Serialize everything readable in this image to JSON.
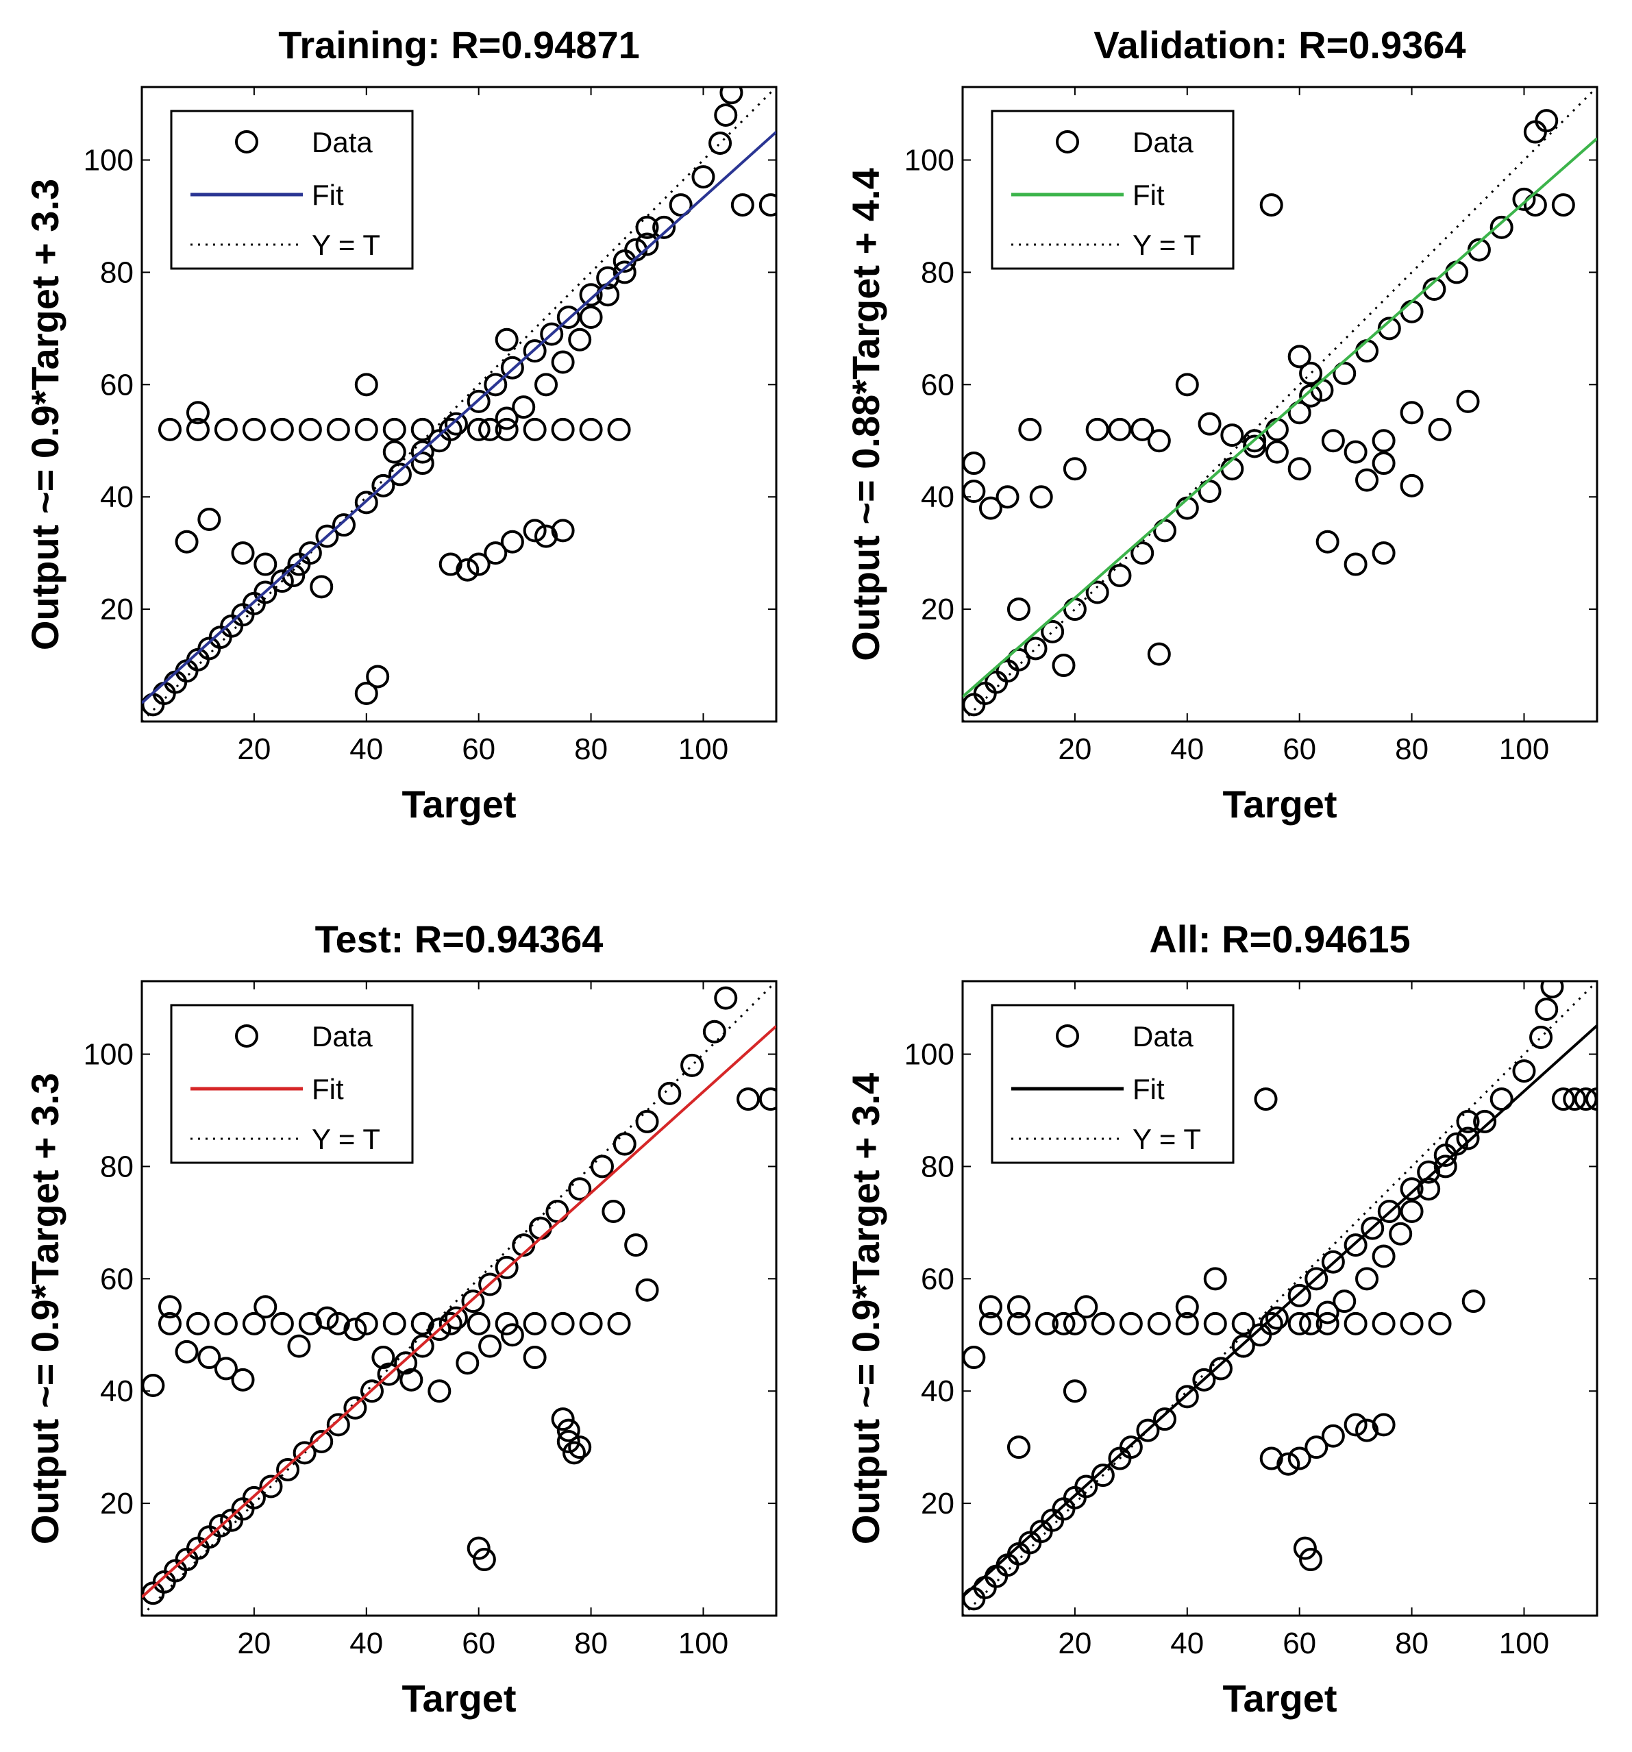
{
  "chart_data": [
    {
      "type": "scatter",
      "title": "Training: R=0.94871",
      "xlabel": "Target",
      "ylabel": "Output ~= 0.9*Target + 3.3",
      "xlim": [
        0,
        113
      ],
      "ylim": [
        0,
        113
      ],
      "xticks": [
        "20",
        "40",
        "60",
        "80",
        "100"
      ],
      "yticks": [
        "20",
        "40",
        "60",
        "80",
        "100"
      ],
      "fit": {
        "slope": 0.9,
        "intercept": 3.3,
        "color": "#2a3593"
      },
      "legend": {
        "position": "top-left",
        "entries": [
          "Data",
          "Fit",
          "Y = T"
        ]
      },
      "series": [
        {
          "name": "Data",
          "x": [
            2,
            4,
            6,
            8,
            10,
            12,
            14,
            16,
            18,
            20,
            22,
            25,
            28,
            30,
            33,
            36,
            40,
            43,
            46,
            50,
            53,
            56,
            60,
            63,
            66,
            70,
            73,
            76,
            80,
            83,
            86,
            90,
            93,
            96,
            100,
            103,
            104,
            105,
            107,
            112,
            5,
            10,
            15,
            20,
            25,
            30,
            35,
            40,
            45,
            50,
            55,
            60,
            65,
            70,
            75,
            80,
            85,
            8,
            12,
            18,
            22,
            27,
            32,
            62,
            65,
            68,
            72,
            75,
            78,
            80,
            83,
            86,
            88,
            90,
            55,
            58,
            60,
            63,
            66,
            70,
            72,
            75,
            40,
            42,
            10,
            40,
            45,
            50,
            65
          ],
          "y": [
            3,
            5,
            7,
            9,
            11,
            13,
            15,
            17,
            19,
            21,
            23,
            25,
            28,
            30,
            33,
            35,
            39,
            42,
            44,
            48,
            50,
            53,
            57,
            60,
            63,
            66,
            69,
            72,
            76,
            79,
            82,
            85,
            88,
            92,
            97,
            103,
            108,
            112,
            92,
            92,
            52,
            52,
            52,
            52,
            52,
            52,
            52,
            52,
            52,
            52,
            52,
            52,
            52,
            52,
            52,
            52,
            52,
            32,
            36,
            30,
            28,
            26,
            24,
            52,
            54,
            56,
            60,
            64,
            68,
            72,
            76,
            80,
            84,
            88,
            28,
            27,
            28,
            30,
            32,
            34,
            33,
            34,
            5,
            8,
            55,
            60,
            48,
            46,
            68
          ]
        }
      ]
    },
    {
      "type": "scatter",
      "title": "Validation: R=0.9364",
      "xlabel": "Target",
      "ylabel": "Output ~= 0.88*Target + 4.4",
      "xlim": [
        0,
        113
      ],
      "ylim": [
        0,
        113
      ],
      "xticks": [
        "20",
        "40",
        "60",
        "80",
        "100"
      ],
      "yticks": [
        "20",
        "40",
        "60",
        "80",
        "100"
      ],
      "fit": {
        "slope": 0.88,
        "intercept": 4.4,
        "color": "#3cb44b"
      },
      "legend": {
        "position": "top-left",
        "entries": [
          "Data",
          "Fit",
          "Y = T"
        ]
      },
      "series": [
        {
          "name": "Data",
          "x": [
            2,
            4,
            6,
            8,
            10,
            13,
            16,
            20,
            24,
            28,
            32,
            36,
            40,
            44,
            48,
            52,
            56,
            60,
            64,
            68,
            72,
            76,
            80,
            84,
            88,
            92,
            96,
            100,
            102,
            104,
            2,
            2,
            5,
            8,
            12,
            14,
            20,
            24,
            28,
            32,
            35,
            40,
            44,
            48,
            52,
            56,
            60,
            55,
            75,
            80,
            85,
            90,
            107,
            102,
            65,
            70,
            75,
            80,
            75,
            72,
            62,
            66,
            70,
            10,
            18,
            35,
            60,
            62
          ],
          "y": [
            3,
            5,
            7,
            9,
            11,
            13,
            16,
            20,
            23,
            26,
            30,
            34,
            38,
            41,
            45,
            49,
            52,
            55,
            59,
            62,
            66,
            70,
            73,
            77,
            80,
            84,
            88,
            93,
            105,
            107,
            46,
            41,
            38,
            40,
            52,
            40,
            45,
            52,
            52,
            52,
            50,
            60,
            53,
            51,
            50,
            48,
            45,
            92,
            50,
            55,
            52,
            57,
            92,
            92,
            32,
            28,
            30,
            42,
            46,
            43,
            58,
            50,
            48,
            20,
            10,
            12,
            65,
            62
          ]
        }
      ]
    },
    {
      "type": "scatter",
      "title": "Test: R=0.94364",
      "xlabel": "Target",
      "ylabel": "Output ~= 0.9*Target + 3.3",
      "xlim": [
        0,
        113
      ],
      "ylim": [
        0,
        113
      ],
      "xticks": [
        "20",
        "40",
        "60",
        "80",
        "100"
      ],
      "yticks": [
        "20",
        "40",
        "60",
        "80",
        "100"
      ],
      "fit": {
        "slope": 0.9,
        "intercept": 3.3,
        "color": "#d62728"
      },
      "legend": {
        "position": "top-left",
        "entries": [
          "Data",
          "Fit",
          "Y = T"
        ]
      },
      "series": [
        {
          "name": "Data",
          "x": [
            2,
            4,
            6,
            8,
            10,
            12,
            14,
            16,
            18,
            20,
            23,
            26,
            29,
            32,
            35,
            38,
            41,
            44,
            47,
            50,
            53,
            56,
            59,
            62,
            65,
            68,
            71,
            74,
            78,
            82,
            86,
            90,
            94,
            98,
            102,
            104,
            108,
            112,
            5,
            10,
            15,
            20,
            25,
            30,
            35,
            40,
            45,
            50,
            55,
            60,
            65,
            70,
            75,
            80,
            85,
            2,
            5,
            8,
            12,
            15,
            18,
            22,
            28,
            33,
            38,
            43,
            48,
            53,
            58,
            62,
            66,
            70,
            75,
            78,
            60,
            61,
            76,
            76,
            77,
            88,
            90,
            84
          ],
          "y": [
            4,
            6,
            8,
            10,
            12,
            14,
            16,
            17,
            19,
            21,
            23,
            26,
            29,
            31,
            34,
            37,
            40,
            43,
            45,
            48,
            51,
            53,
            56,
            59,
            62,
            66,
            69,
            72,
            76,
            80,
            84,
            88,
            93,
            98,
            104,
            110,
            92,
            92,
            52,
            52,
            52,
            52,
            52,
            52,
            52,
            52,
            52,
            52,
            52,
            52,
            52,
            52,
            52,
            52,
            52,
            41,
            55,
            47,
            46,
            44,
            42,
            55,
            48,
            53,
            51,
            46,
            42,
            40,
            45,
            48,
            50,
            46,
            35,
            30,
            12,
            10,
            33,
            31,
            29,
            66,
            58,
            72
          ]
        }
      ]
    },
    {
      "type": "scatter",
      "title": "All: R=0.94615",
      "xlabel": "Target",
      "ylabel": "Output ~= 0.9*Target + 3.4",
      "xlim": [
        0,
        113
      ],
      "ylim": [
        0,
        113
      ],
      "xticks": [
        "20",
        "40",
        "60",
        "80",
        "100"
      ],
      "yticks": [
        "20",
        "40",
        "60",
        "80",
        "100"
      ],
      "fit": {
        "slope": 0.9,
        "intercept": 3.4,
        "color": "#000000"
      },
      "legend": {
        "position": "top-left",
        "entries": [
          "Data",
          "Fit",
          "Y = T"
        ]
      },
      "series": [
        {
          "name": "Data",
          "x": [
            2,
            4,
            6,
            8,
            10,
            12,
            14,
            16,
            18,
            20,
            22,
            25,
            28,
            30,
            33,
            36,
            40,
            43,
            46,
            50,
            53,
            56,
            60,
            63,
            66,
            70,
            73,
            76,
            80,
            83,
            86,
            90,
            93,
            96,
            100,
            103,
            104,
            105,
            107,
            109,
            111,
            113,
            5,
            10,
            15,
            20,
            25,
            30,
            35,
            40,
            45,
            50,
            55,
            60,
            65,
            70,
            75,
            80,
            85,
            2,
            5,
            10,
            18,
            22,
            62,
            65,
            68,
            72,
            75,
            78,
            80,
            83,
            86,
            88,
            90,
            55,
            58,
            60,
            63,
            66,
            70,
            72,
            75,
            54,
            61,
            62,
            91,
            40,
            45,
            50,
            10,
            20
          ],
          "y": [
            3,
            5,
            7,
            9,
            11,
            13,
            15,
            17,
            19,
            21,
            23,
            25,
            28,
            30,
            33,
            35,
            39,
            42,
            44,
            48,
            50,
            53,
            57,
            60,
            63,
            66,
            69,
            72,
            76,
            79,
            82,
            85,
            88,
            92,
            97,
            103,
            108,
            112,
            92,
            92,
            92,
            92,
            52,
            52,
            52,
            52,
            52,
            52,
            52,
            52,
            52,
            52,
            52,
            52,
            52,
            52,
            52,
            52,
            52,
            46,
            55,
            55,
            52,
            55,
            52,
            54,
            56,
            60,
            64,
            68,
            72,
            76,
            80,
            84,
            88,
            28,
            27,
            28,
            30,
            32,
            34,
            33,
            34,
            92,
            12,
            10,
            56,
            55,
            60,
            48,
            30,
            40
          ]
        }
      ]
    }
  ]
}
